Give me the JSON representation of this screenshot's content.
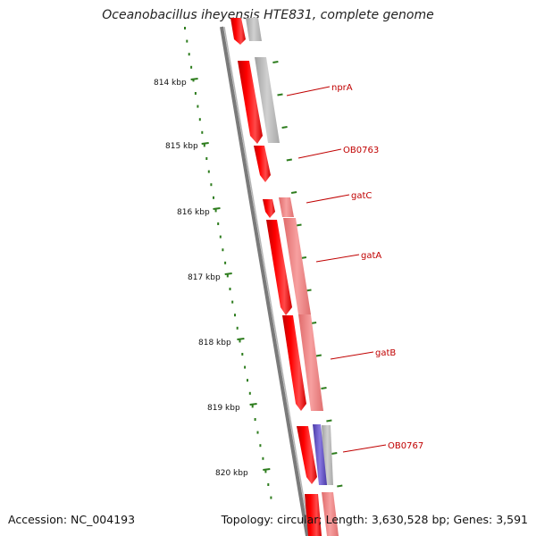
{
  "header": {
    "title": "Oceanobacillus iheyensis HTE831, complete genome"
  },
  "footer": {
    "accession": "Accession: NC_004193",
    "topology": "Topology: circular; Length: 3,630,528 bp; Genes: 3,591"
  },
  "colors": {
    "backbone": "#8a8a8a",
    "ruler_tick": "#2e7d1e",
    "gene_forward": "#ff0000",
    "gene_cds_gray": "#b9b9b9",
    "gene_cds_pink": "#f08080",
    "gene_rna_blue": "#6a5acd",
    "label": "#c00000"
  },
  "ruler": {
    "unit": "kbp",
    "labels": [
      "814 kbp",
      "815 kbp",
      "816 kbp",
      "817 kbp",
      "818 kbp",
      "819 kbp",
      "820 kbp"
    ]
  },
  "genes": [
    {
      "name": "nprA"
    },
    {
      "name": "OB0763"
    },
    {
      "name": "gatC"
    },
    {
      "name": "gatA"
    },
    {
      "name": "gatB"
    },
    {
      "name": "OB0767"
    }
  ]
}
